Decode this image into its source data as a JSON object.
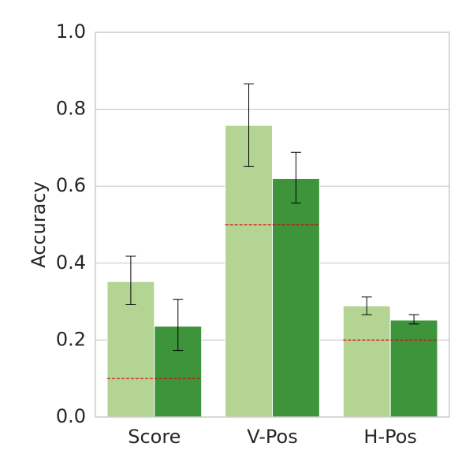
{
  "chart_data": {
    "type": "bar",
    "title": "",
    "xlabel": "",
    "ylabel": "Accuracy",
    "ylim": [
      0,
      1.0
    ],
    "yticks": [
      "0.0",
      "0.2",
      "0.4",
      "0.6",
      "0.8",
      "1.0"
    ],
    "grid": true,
    "categories": [
      "Score",
      "V-Pos",
      "H-Pos"
    ],
    "series": [
      {
        "color": "#b3d493",
        "values": [
          0.352,
          0.758,
          0.289
        ],
        "err_low": [
          0.292,
          0.651,
          0.266
        ],
        "err_high": [
          0.418,
          0.866,
          0.312
        ]
      },
      {
        "color": "#3d943b",
        "values": [
          0.236,
          0.62,
          0.252
        ],
        "err_low": [
          0.173,
          0.556,
          0.242
        ],
        "err_high": [
          0.306,
          0.688,
          0.266
        ]
      }
    ],
    "baselines": {
      "color": "#e00000",
      "values": [
        0.1,
        0.5,
        0.2
      ]
    }
  }
}
